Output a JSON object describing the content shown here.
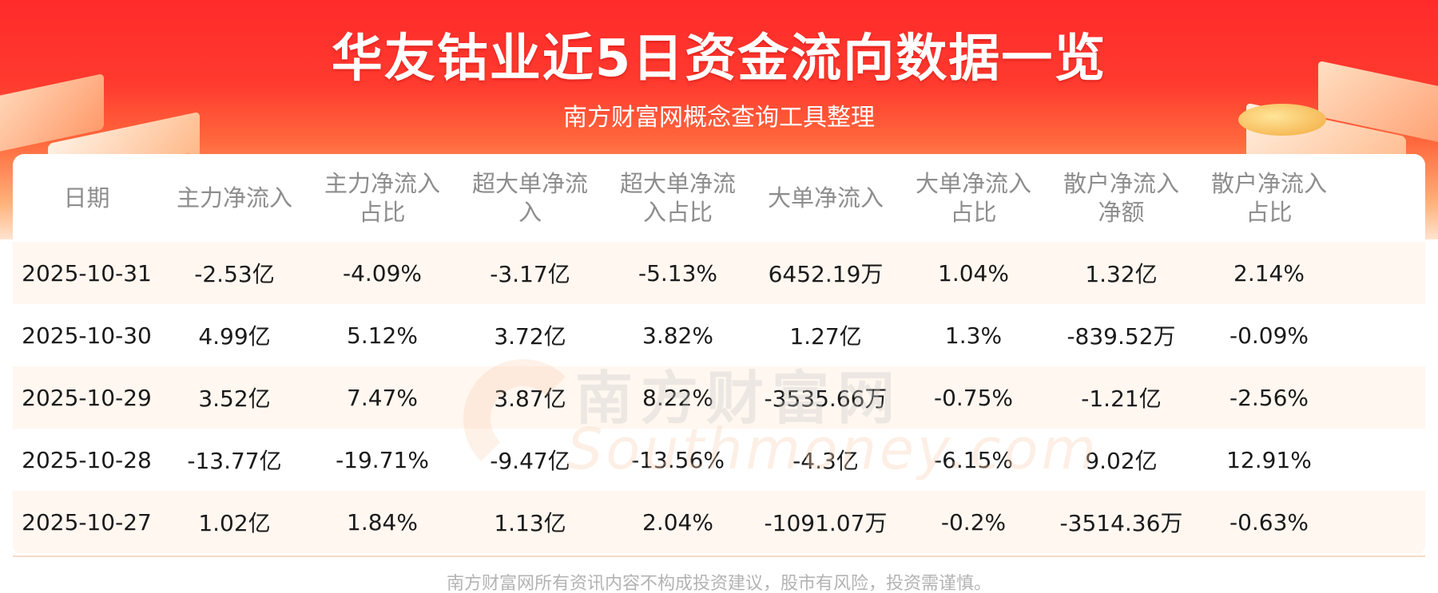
{
  "header": {
    "title": "华友钴业近5日资金流向数据一览",
    "subtitle": "南方财富网概念查询工具整理"
  },
  "table": {
    "columns": [
      "日期",
      "主力净流入",
      "主力净流入\n占比",
      "超大单净流\n入",
      "超大单净流\n入占比",
      "大单净流入",
      "大单净流入\n占比",
      "散户净流入\n净额",
      "散户净流入\n占比"
    ],
    "rows": [
      [
        "2025-10-31",
        "-2.53亿",
        "-4.09%",
        "-3.17亿",
        "-5.13%",
        "6452.19万",
        "1.04%",
        "1.32亿",
        "2.14%"
      ],
      [
        "2025-10-30",
        "4.99亿",
        "5.12%",
        "3.72亿",
        "3.82%",
        "1.27亿",
        "1.3%",
        "-839.52万",
        "-0.09%"
      ],
      [
        "2025-10-29",
        "3.52亿",
        "7.47%",
        "3.87亿",
        "8.22%",
        "-3535.66万",
        "-0.75%",
        "-1.21亿",
        "-2.56%"
      ],
      [
        "2025-10-28",
        "-13.77亿",
        "-19.71%",
        "-9.47亿",
        "-13.56%",
        "-4.3亿",
        "-6.15%",
        "9.02亿",
        "12.91%"
      ],
      [
        "2025-10-27",
        "1.02亿",
        "1.84%",
        "1.13亿",
        "2.04%",
        "-1091.07万",
        "-0.2%",
        "-3514.36万",
        "-0.63%"
      ]
    ]
  },
  "watermark": {
    "cn": "南方财富网",
    "en": "Southmoney.com"
  },
  "footer": {
    "disclaimer": "南方财富网所有资讯内容不构成投资建议，股市有风险，投资需谨慎。"
  },
  "colors": {
    "banner_red": "#ff2b2b",
    "row_shade": "#fff7f0",
    "header_text": "#8d8d8d",
    "cell_text": "#1a1a1a"
  }
}
